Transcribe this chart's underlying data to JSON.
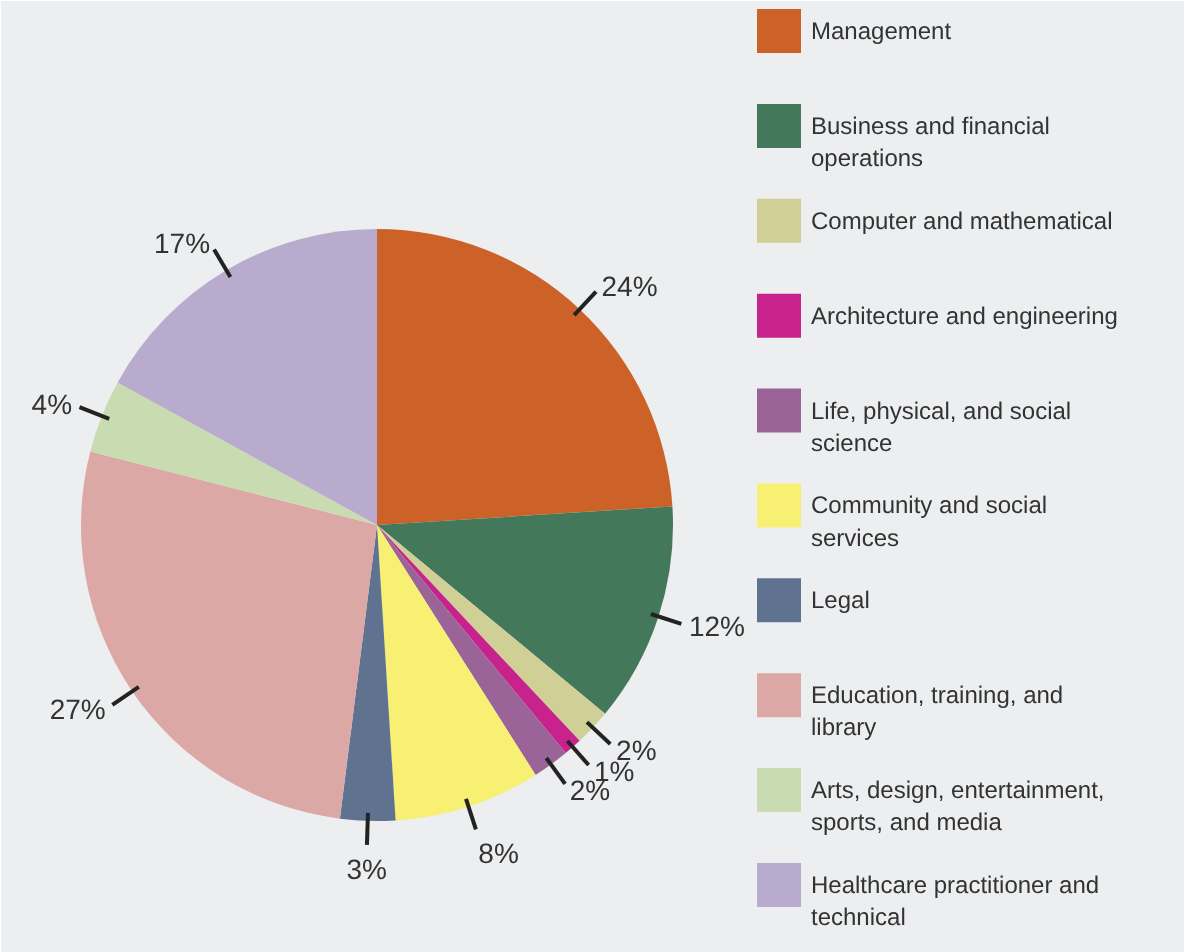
{
  "chart_data": {
    "type": "pie",
    "categories": [
      "Management",
      "Business and financial operations",
      "Computer and mathematical",
      "Architecture and engineering",
      "Life, physical, and social science",
      "Community and social services",
      "Legal",
      "Education, training, and library",
      "Arts, design, entertainment, sports, and media",
      "Healthcare practitioner and technical"
    ],
    "values": [
      24,
      12,
      2,
      1,
      2,
      8,
      3,
      27,
      4,
      17
    ],
    "colors": [
      "#cd6228",
      "#44785a",
      "#cfcf96",
      "#c8238c",
      "#9a6499",
      "#f7f072",
      "#5f7391",
      "#dca8a5",
      "#c9dbb0",
      "#b8abcd"
    ],
    "value_labels": [
      "24%",
      "12%",
      "2%",
      "1%",
      "2%",
      "8%",
      "3%",
      "27%",
      "4%",
      "17%"
    ],
    "legend": "right"
  }
}
